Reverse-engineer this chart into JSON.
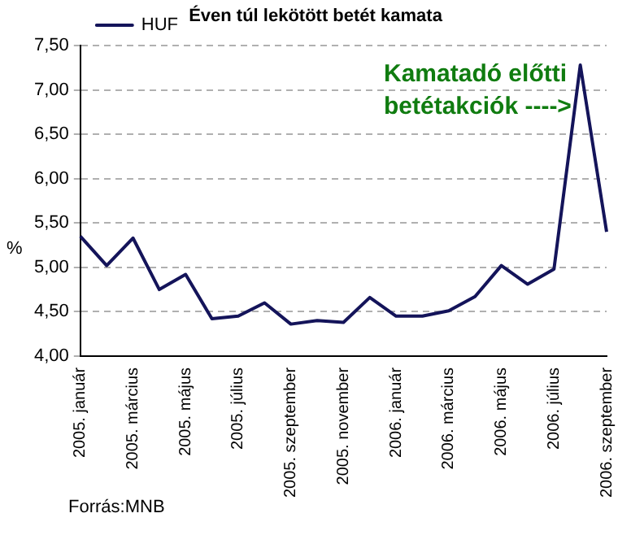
{
  "chart_data": {
    "type": "line",
    "title": "Éven túl lekötött betét kamata",
    "ylabel": "%",
    "categories": [
      "2005. január",
      null,
      "2005. március",
      null,
      "2005. május",
      null,
      "2005. július",
      null,
      "2005. szeptember",
      null,
      "2005. november",
      null,
      "2006. január",
      null,
      "2006. március",
      null,
      "2006. május",
      null,
      "2006. július",
      null,
      "2006. szeptember"
    ],
    "series": [
      {
        "name": "HUF",
        "color": "#14145a",
        "values": [
          5.35,
          5.02,
          5.33,
          4.75,
          4.92,
          4.42,
          4.45,
          4.6,
          4.36,
          4.4,
          4.38,
          4.66,
          4.45,
          4.45,
          4.51,
          4.67,
          5.02,
          4.81,
          4.98,
          7.28,
          5.4
        ]
      }
    ],
    "ylim": [
      4,
      7.5
    ],
    "yticks": [
      {
        "value": 4,
        "label": "4,00"
      },
      {
        "value": 4.5,
        "label": "4,50"
      },
      {
        "value": 5,
        "label": "5,00"
      },
      {
        "value": 5.5,
        "label": "5,50"
      },
      {
        "value": 6,
        "label": "6,00"
      },
      {
        "value": 6.5,
        "label": "6,50"
      },
      {
        "value": 7,
        "label": "7,00"
      },
      {
        "value": 7.5,
        "label": "7,50"
      }
    ],
    "grid": "y",
    "legend": "top left",
    "marker": "none",
    "line_style": "solid",
    "annotations": [
      "Kamatadó előtti betétakciók ---->",
      "Forrás:MNB"
    ]
  }
}
